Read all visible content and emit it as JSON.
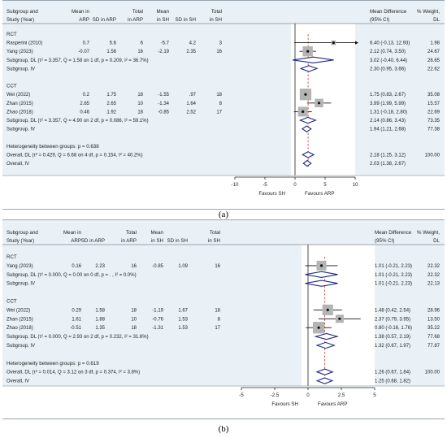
{
  "panels": [
    {
      "id": "a",
      "caption": "(a)",
      "headers": {
        "c0": [
          "Subgroup and",
          "Study (Year)"
        ],
        "c1": [
          "Mean in",
          "ARP"
        ],
        "c2": [
          "",
          "SD in ARP"
        ],
        "c3": [
          "Total",
          "in ARP"
        ],
        "c4": [
          "Mean",
          "in SH"
        ],
        "c5": [
          "",
          "SD in SH"
        ],
        "c6": [
          "Total",
          "in SH"
        ],
        "c7": [
          "Mean Difference",
          "(95% CI)"
        ],
        "c8": [
          "% Weight,",
          "DL"
        ]
      },
      "rows": [
        {
          "kind": "group",
          "label": "RCT"
        },
        {
          "kind": "study",
          "label": "Rasperini (2010)",
          "m1": "0.7",
          "sd1": "5.6",
          "n1": "6",
          "m2": "-5.7",
          "sd2": "4.2",
          "n2": "3",
          "ci": "6.40 (-0.13, 12.93)",
          "w": "1.98",
          "est": 6.4,
          "lo": -0.13,
          "hi": 12.93,
          "weight": 1.98
        },
        {
          "kind": "study",
          "label": "Yang (2023)",
          "m1": "-0.07",
          "sd1": "1.56",
          "n1": "16",
          "m2": "-2.19",
          "sd2": "2.35",
          "n2": "16",
          "ci": "2.12 (0.74, 3.50)",
          "w": "24.67",
          "est": 2.12,
          "lo": 0.74,
          "hi": 3.5,
          "weight": 24.67
        },
        {
          "kind": "subtotal",
          "label": "Subgroup, DL (τ² = 3.357, Q = 1.58 on 1 df, p = 0.209, I² = 36.7%)",
          "ci": "3.02 (-0.40, 6.44)",
          "w": "26.65",
          "est": 3.02,
          "lo": -0.4,
          "hi": 6.44
        },
        {
          "kind": "subtotal",
          "label": "Subgroup, IV",
          "ci": "2.30 (0.95, 3.66)",
          "w": "22.62",
          "est": 2.3,
          "lo": 0.95,
          "hi": 3.66
        },
        {
          "kind": "blank"
        },
        {
          "kind": "group",
          "label": "CCT"
        },
        {
          "kind": "study",
          "label": "Wei (2022)",
          "m1": "0.2",
          "sd1": "1.75",
          "n1": "18",
          "m2": "-1.55",
          "sd2": ".97",
          "n2": "18",
          "ci": "1.75 (0.83, 2.67)",
          "w": "35.08",
          "est": 1.75,
          "lo": 0.83,
          "hi": 2.67,
          "weight": 35.08
        },
        {
          "kind": "study",
          "label": "Zhan (2015)",
          "m1": "2.65",
          "sd1": "2.65",
          "n1": "10",
          "m2": "-1.34",
          "sd2": "1.64",
          "n2": "8",
          "ci": "3.99 (1.99, 5.99)",
          "w": "15.57",
          "est": 3.99,
          "lo": 1.99,
          "hi": 5.99,
          "weight": 15.57
        },
        {
          "kind": "study",
          "label": "Zhao (2018)",
          "m1": "0.46",
          "sd1": "1.92",
          "n1": "18",
          "m2": "-0.85",
          "sd2": "2.52",
          "n2": "17",
          "ci": "1.31 (-0.18, 2.80)",
          "w": "22.69",
          "est": 1.31,
          "lo": -0.18,
          "hi": 2.8,
          "weight": 22.69
        },
        {
          "kind": "subtotal",
          "label": "Subgroup, DL (τ² = 3.357, Q = 4.90 on 2 df, p = 0.086, I² = 59.1%)",
          "ci": "2.14 (0.86, 3.43)",
          "w": "73.35",
          "est": 2.14,
          "lo": 0.86,
          "hi": 3.43
        },
        {
          "kind": "subtotal",
          "label": "Subgroup, IV",
          "ci": "1.94 (1.21, 2.68)",
          "w": "77.38",
          "est": 1.94,
          "lo": 1.21,
          "hi": 2.68
        },
        {
          "kind": "blank"
        },
        {
          "kind": "note",
          "label": "Heterogeneity between groups: p = 0.638"
        },
        {
          "kind": "overall",
          "label": "Overall, DL (τ² = 0.429, Q = 6.68 on 4 df, p = 0.154, I² = 40.2%)",
          "ci": "2.18 (1.25, 3.12)",
          "w": "100.00",
          "est": 2.18,
          "lo": 1.25,
          "hi": 3.12
        },
        {
          "kind": "overall",
          "label": "Overall, IV",
          "ci": "2.03 (1.38, 2.67)",
          "w": "",
          "est": 2.03,
          "lo": 1.38,
          "hi": 2.67
        }
      ],
      "axis": {
        "xmin": -10,
        "xmax": 10,
        "ticks": [
          -10,
          -5,
          0,
          5,
          10
        ],
        "tick_labels": [
          "-10",
          "-5",
          "0",
          "5",
          "10"
        ],
        "left_label": "Favours SH",
        "right_label": "Favours ARP"
      }
    },
    {
      "id": "b",
      "caption": "(b)",
      "headers": {
        "c0": [
          "Subgroup and",
          "Study (Year)"
        ],
        "c1": [
          "Mean in",
          "ARP"
        ],
        "c2": [
          "",
          "SD in ARP"
        ],
        "c3": [
          "Total",
          "in ARP"
        ],
        "c4": [
          "Mean",
          "in SH"
        ],
        "c5": [
          "",
          "SD in SH"
        ],
        "c6": [
          "Total",
          "in SH"
        ],
        "c7": [
          "Mean Difference",
          "(95% CI)"
        ],
        "c8": [
          "% Weight,",
          "DL"
        ]
      },
      "rows": [
        {
          "kind": "group",
          "label": "RCT"
        },
        {
          "kind": "study",
          "label": "Yang (2023)",
          "m1": "0.16",
          "sd1": "2.23",
          "n1": "16",
          "m2": "-0.85",
          "sd2": "1.09",
          "n2": "16",
          "ci": "1.01 (-0.21, 2.23)",
          "w": "22.32",
          "est": 1.01,
          "lo": -0.21,
          "hi": 2.23,
          "weight": 22.32
        },
        {
          "kind": "subtotal",
          "label": "Subgroup, DL (τ² = 0.000, Q = 0.00 on 0 df, p = . , I² = 0.0%)",
          "ci": "1.01 (-0.21, 2.23)",
          "w": "22.32",
          "est": 1.01,
          "lo": -0.21,
          "hi": 2.23
        },
        {
          "kind": "subtotal",
          "label": "Subgroup, IV",
          "ci": "1.01 (-0.21, 2.23)",
          "w": "22.13",
          "est": 1.01,
          "lo": -0.21,
          "hi": 2.23
        },
        {
          "kind": "blank"
        },
        {
          "kind": "group",
          "label": "CCT"
        },
        {
          "kind": "study",
          "label": "Wei (2022)",
          "m1": "0.29",
          "sd1": "1.58",
          "n1": "18",
          "m2": "-1.19",
          "sd2": "1.67",
          "n2": "18",
          "ci": "1.48 (0.42, 2.54)",
          "w": "28.96",
          "est": 1.48,
          "lo": 0.42,
          "hi": 2.54,
          "weight": 28.96
        },
        {
          "kind": "study",
          "label": "Zhan (2015)",
          "m1": "1.61",
          "sd1": "1.88",
          "n1": "10",
          "m2": "-0.76",
          "sd2": "1.53",
          "n2": "8",
          "ci": "2.37 (0.79, 3.95)",
          "w": "13.50",
          "est": 2.37,
          "lo": 0.79,
          "hi": 3.95,
          "weight": 13.5
        },
        {
          "kind": "study",
          "label": "Zhao (2018)",
          "m1": "-0.51",
          "sd1": "1.35",
          "n1": "18",
          "m2": "-1.31",
          "sd2": "1.53",
          "n2": "17",
          "ci": "0.80 (-0.16, 1.76)",
          "w": "35.22",
          "est": 0.8,
          "lo": -0.16,
          "hi": 1.76,
          "weight": 35.22
        },
        {
          "kind": "subtotal",
          "label": "Subgroup, DL (τ² = 0.000, Q = 2.93 on 2 df, p = 0.232, I² = 31.6%)",
          "ci": "1.38 (0.57, 2.19)",
          "w": "77.68",
          "est": 1.38,
          "lo": 0.57,
          "hi": 2.19
        },
        {
          "kind": "subtotal",
          "label": "Subgroup, IV",
          "ci": "1.32 (0.67, 1.97)",
          "w": "77.87",
          "est": 1.32,
          "lo": 0.67,
          "hi": 1.97
        },
        {
          "kind": "blank"
        },
        {
          "kind": "note",
          "label": "Heterogeneity between groups: p = 0.619"
        },
        {
          "kind": "overall",
          "label": "Overall, DL (τ² = 0.014, Q = 3.12 on 3 df, p = 0.374, I² = 3.8%)",
          "ci": "1.26 (0.67, 1.84)",
          "w": "100.00",
          "est": 1.26,
          "lo": 0.67,
          "hi": 1.84
        },
        {
          "kind": "overall",
          "label": "Overall, IV",
          "ci": "1.25 (0.68, 1.82)",
          "w": "",
          "est": 1.25,
          "lo": 0.68,
          "hi": 1.82
        }
      ],
      "axis": {
        "xmin": -5,
        "xmax": 5,
        "ticks": [
          -5,
          -2.5,
          0,
          2.5,
          5
        ],
        "tick_labels": [
          "-5",
          "-2.5",
          "0",
          "2.5",
          "5"
        ],
        "left_label": "Favours SH",
        "right_label": "Favours ARP"
      }
    }
  ],
  "chart_data": [
    {
      "type": "forest",
      "title": "",
      "xlabel": "",
      "xlim": [
        -10,
        10
      ],
      "left_label": "Favours SH",
      "right_label": "Favours ARP",
      "studies": [
        {
          "name": "Rasperini (2010)",
          "group": "RCT",
          "y": 6.4,
          "ci": [
            -0.13,
            12.93
          ],
          "weight": 1.98
        },
        {
          "name": "Yang (2023)",
          "group": "RCT",
          "y": 2.12,
          "ci": [
            0.74,
            3.5
          ],
          "weight": 24.67
        },
        {
          "name": "Wei (2022)",
          "group": "CCT",
          "y": 1.75,
          "ci": [
            0.83,
            2.67
          ],
          "weight": 35.08
        },
        {
          "name": "Zhan (2015)",
          "group": "CCT",
          "y": 3.99,
          "ci": [
            1.99,
            5.99
          ],
          "weight": 15.57
        },
        {
          "name": "Zhao (2018)",
          "group": "CCT",
          "y": 1.31,
          "ci": [
            -0.18,
            2.8
          ],
          "weight": 22.69
        }
      ],
      "pooled": [
        {
          "name": "Subgroup, DL",
          "group": "RCT",
          "y": 3.02,
          "ci": [
            -0.4,
            6.44
          ],
          "weight": 26.65
        },
        {
          "name": "Subgroup, IV",
          "group": "RCT",
          "y": 2.3,
          "ci": [
            0.95,
            3.66
          ],
          "weight": 22.62
        },
        {
          "name": "Subgroup, DL",
          "group": "CCT",
          "y": 2.14,
          "ci": [
            0.86,
            3.43
          ],
          "weight": 73.35
        },
        {
          "name": "Subgroup, IV",
          "group": "CCT",
          "y": 1.94,
          "ci": [
            1.21,
            2.68
          ],
          "weight": 77.38
        },
        {
          "name": "Overall, DL",
          "y": 2.18,
          "ci": [
            1.25,
            3.12
          ],
          "weight": 100.0
        },
        {
          "name": "Overall, IV",
          "y": 2.03,
          "ci": [
            1.38,
            2.67
          ]
        }
      ]
    },
    {
      "type": "forest",
      "title": "",
      "xlabel": "",
      "xlim": [
        -5,
        5
      ],
      "left_label": "Favours SH",
      "right_label": "Favours ARP",
      "studies": [
        {
          "name": "Yang (2023)",
          "group": "RCT",
          "y": 1.01,
          "ci": [
            -0.21,
            2.23
          ],
          "weight": 22.32
        },
        {
          "name": "Wei (2022)",
          "group": "CCT",
          "y": 1.48,
          "ci": [
            0.42,
            2.54
          ],
          "weight": 28.96
        },
        {
          "name": "Zhan (2015)",
          "group": "CCT",
          "y": 2.37,
          "ci": [
            0.79,
            3.95
          ],
          "weight": 13.5
        },
        {
          "name": "Zhao (2018)",
          "group": "CCT",
          "y": 0.8,
          "ci": [
            -0.16,
            1.76
          ],
          "weight": 35.22
        }
      ],
      "pooled": [
        {
          "name": "Subgroup, DL",
          "group": "RCT",
          "y": 1.01,
          "ci": [
            -0.21,
            2.23
          ],
          "weight": 22.32
        },
        {
          "name": "Subgroup, IV",
          "group": "RCT",
          "y": 1.01,
          "ci": [
            -0.21,
            2.23
          ],
          "weight": 22.13
        },
        {
          "name": "Subgroup, DL",
          "group": "CCT",
          "y": 1.38,
          "ci": [
            0.57,
            2.19
          ],
          "weight": 77.68
        },
        {
          "name": "Subgroup, IV",
          "group": "CCT",
          "y": 1.32,
          "ci": [
            0.67,
            1.97
          ],
          "weight": 77.87
        },
        {
          "name": "Overall, DL",
          "y": 1.26,
          "ci": [
            0.67,
            1.84
          ],
          "weight": 100.0
        },
        {
          "name": "Overall, IV",
          "y": 1.25,
          "ci": [
            0.68,
            1.82
          ]
        }
      ]
    }
  ]
}
